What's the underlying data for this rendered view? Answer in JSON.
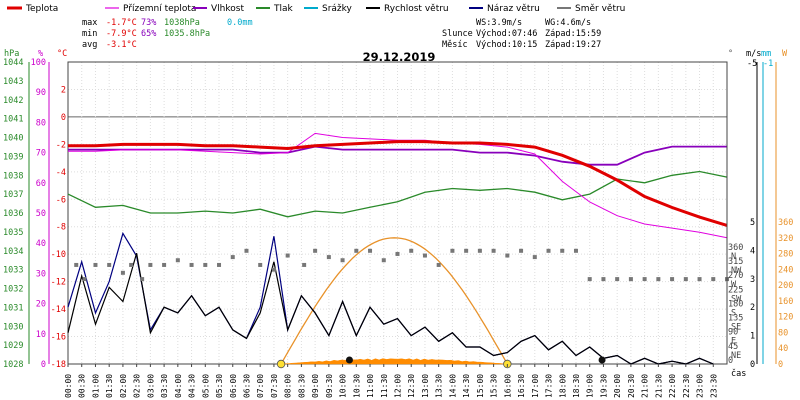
{
  "chart_data": {
    "type": "line",
    "title": "29.12.2019",
    "xlabel": "čas",
    "legend": [
      {
        "name": "Teplota",
        "color": "#e00000"
      },
      {
        "name": "Přízemní teplota",
        "color": "#e000e0"
      },
      {
        "name": "Vlhkost",
        "color": "#8800bb"
      },
      {
        "name": "Tlak",
        "color": "#2a8a2a"
      },
      {
        "name": "Srážky",
        "color": "#00aacc"
      },
      {
        "name": "Rychlost větru",
        "color": "#000000"
      },
      {
        "name": "Náraz větru",
        "color": "#000080"
      },
      {
        "name": "Směr větru",
        "color": "#777777"
      }
    ],
    "stats": {
      "max_label": "max",
      "max_temp": "-1.7°C",
      "max_hum": "73%",
      "max_press": "1038hPa",
      "precip": "0.0mm",
      "min_label": "min",
      "min_temp": "-7.9°C",
      "min_hum": "65%",
      "min_press": "1035.8hPa",
      "avg_label": "avg",
      "avg_temp": "-3.1°C"
    },
    "wind_info": {
      "ws": "WS:3.9m/s",
      "wg": "WG:4.6m/s"
    },
    "sun_info": {
      "label": "Slunce",
      "rise": "Východ:07:46",
      "set": "Západ:15:59"
    },
    "moon_info": {
      "label": "Měsíc",
      "rise": "Východ:10:15",
      "set": "Západ:19:27"
    },
    "axes": {
      "pressure": {
        "unit": "hPa",
        "ticks": [
          "1044",
          "1043",
          "1042",
          "1041",
          "1040",
          "1039",
          "1038",
          "1037",
          "1036",
          "1035",
          "1034",
          "1033",
          "1032",
          "1031",
          "1030",
          "1029",
          "1028"
        ]
      },
      "humidity": {
        "unit": "%",
        "ticks": [
          "100",
          "90",
          "80",
          "70",
          "60",
          "50",
          "40",
          "30",
          "20",
          "10",
          "0"
        ]
      },
      "temperature": {
        "unit": "°C",
        "range": [
          -18,
          4
        ],
        "ticks": [
          "2",
          "0",
          "-2",
          "-4",
          "-6",
          "-8",
          "-10",
          "-12",
          "-14",
          "-16",
          "-18"
        ]
      },
      "direction": {
        "unit": "°",
        "ticks": [
          {
            "v": "360",
            "d": "N"
          },
          {
            "v": "315",
            "d": "NW"
          },
          {
            "v": "270",
            "d": "W"
          },
          {
            "v": "225",
            "d": "SW"
          },
          {
            "v": "180",
            "d": "S"
          },
          {
            "v": "135",
            "d": "SE"
          },
          {
            "v": "90",
            "d": "E"
          },
          {
            "v": "45",
            "d": "NE"
          },
          {
            "v": "0",
            "d": ""
          }
        ]
      },
      "wind_speed": {
        "unit": "m/s",
        "top": "-5",
        "ticks": [
          "5",
          "4",
          "3",
          "2",
          "1",
          "0"
        ]
      },
      "rain": {
        "unit": "mm",
        "top": "-1"
      },
      "solar": {
        "unit": "W",
        "ticks": [
          "360",
          "320",
          "280",
          "240",
          "200",
          "160",
          "120",
          "80",
          "40",
          "0"
        ]
      }
    },
    "x_ticks": [
      "00:00",
      "00:30",
      "01:00",
      "01:30",
      "02:00",
      "02:30",
      "03:00",
      "03:30",
      "04:00",
      "04:30",
      "05:00",
      "05:30",
      "06:00",
      "06:30",
      "07:00",
      "07:30",
      "08:00",
      "08:30",
      "09:00",
      "09:30",
      "10:00",
      "10:30",
      "11:00",
      "11:30",
      "12:00",
      "12:30",
      "13:00",
      "13:30",
      "14:00",
      "14:30",
      "15:00",
      "15:30",
      "16:00",
      "16:30",
      "17:00",
      "17:30",
      "18:00",
      "18:30",
      "19:00",
      "19:30",
      "20:00",
      "20:30",
      "21:00",
      "21:30",
      "22:00",
      "22:30",
      "23:00",
      "23:30"
    ],
    "series": {
      "temperature": [
        [
          0,
          -2.1
        ],
        [
          1,
          -2.1
        ],
        [
          2,
          -2.0
        ],
        [
          3,
          -2.0
        ],
        [
          4,
          -2.0
        ],
        [
          5,
          -2.1
        ],
        [
          6,
          -2.1
        ],
        [
          7,
          -2.2
        ],
        [
          8,
          -2.3
        ],
        [
          9,
          -2.1
        ],
        [
          10,
          -2.0
        ],
        [
          11,
          -1.9
        ],
        [
          12,
          -1.8
        ],
        [
          13,
          -1.8
        ],
        [
          14,
          -1.9
        ],
        [
          15,
          -1.9
        ],
        [
          16,
          -2.0
        ],
        [
          17,
          -2.2
        ],
        [
          18,
          -2.8
        ],
        [
          19,
          -3.6
        ],
        [
          20,
          -4.6
        ],
        [
          21,
          -5.8
        ],
        [
          22,
          -6.6
        ],
        [
          23,
          -7.3
        ],
        [
          24,
          -7.9
        ]
      ],
      "ground_temperature": [
        [
          0,
          -2.5
        ],
        [
          1,
          -2.5
        ],
        [
          2,
          -2.4
        ],
        [
          3,
          -2.4
        ],
        [
          4,
          -2.4
        ],
        [
          5,
          -2.5
        ],
        [
          6,
          -2.6
        ],
        [
          7,
          -2.7
        ],
        [
          8,
          -2.6
        ],
        [
          9,
          -1.2
        ],
        [
          10,
          -1.5
        ],
        [
          11,
          -1.6
        ],
        [
          12,
          -1.7
        ],
        [
          13,
          -1.7
        ],
        [
          14,
          -1.9
        ],
        [
          15,
          -2.0
        ],
        [
          16,
          -2.2
        ],
        [
          17,
          -2.7
        ],
        [
          18,
          -4.7
        ],
        [
          19,
          -6.2
        ],
        [
          20,
          -7.2
        ],
        [
          21,
          -7.8
        ],
        [
          22,
          -8.1
        ],
        [
          23,
          -8.4
        ],
        [
          24,
          -8.8
        ]
      ],
      "humidity": [
        [
          0,
          71
        ],
        [
          1,
          71
        ],
        [
          2,
          71
        ],
        [
          3,
          71
        ],
        [
          4,
          71
        ],
        [
          5,
          71
        ],
        [
          6,
          71
        ],
        [
          7,
          70
        ],
        [
          8,
          70
        ],
        [
          9,
          72
        ],
        [
          10,
          71
        ],
        [
          11,
          71
        ],
        [
          12,
          71
        ],
        [
          13,
          71
        ],
        [
          14,
          71
        ],
        [
          15,
          70
        ],
        [
          16,
          70
        ],
        [
          17,
          69
        ],
        [
          18,
          67
        ],
        [
          19,
          66
        ],
        [
          20,
          66
        ],
        [
          21,
          70
        ],
        [
          22,
          72
        ],
        [
          23,
          72
        ],
        [
          24,
          72
        ]
      ],
      "pressure": [
        [
          0,
          1037.0
        ],
        [
          1,
          1036.3
        ],
        [
          2,
          1036.4
        ],
        [
          3,
          1036.0
        ],
        [
          4,
          1036.0
        ],
        [
          5,
          1036.1
        ],
        [
          6,
          1036.0
        ],
        [
          7,
          1036.2
        ],
        [
          8,
          1035.8
        ],
        [
          9,
          1036.1
        ],
        [
          10,
          1036.0
        ],
        [
          11,
          1036.3
        ],
        [
          12,
          1036.6
        ],
        [
          13,
          1037.1
        ],
        [
          14,
          1037.3
        ],
        [
          15,
          1037.2
        ],
        [
          16,
          1037.3
        ],
        [
          17,
          1037.1
        ],
        [
          18,
          1036.7
        ],
        [
          19,
          1037.0
        ],
        [
          20,
          1037.8
        ],
        [
          21,
          1037.6
        ],
        [
          22,
          1038.0
        ],
        [
          23,
          1038.2
        ],
        [
          24,
          1037.9
        ]
      ],
      "wind_speed": [
        [
          0,
          1.1
        ],
        [
          0.5,
          3.1
        ],
        [
          1,
          1.4
        ],
        [
          1.5,
          2.7
        ],
        [
          2,
          2.2
        ],
        [
          2.5,
          3.9
        ],
        [
          3,
          1.1
        ],
        [
          3.5,
          2.0
        ],
        [
          4,
          1.8
        ],
        [
          4.5,
          2.4
        ],
        [
          5,
          1.7
        ],
        [
          5.5,
          2.0
        ],
        [
          6,
          1.2
        ],
        [
          6.5,
          0.9
        ],
        [
          7,
          1.8
        ],
        [
          7.5,
          3.6
        ],
        [
          8,
          1.2
        ],
        [
          8.5,
          2.4
        ],
        [
          9,
          1.8
        ],
        [
          9.5,
          1.0
        ],
        [
          10,
          2.2
        ],
        [
          10.5,
          1.0
        ],
        [
          11,
          2.0
        ],
        [
          11.5,
          1.4
        ],
        [
          12,
          1.6
        ],
        [
          12.5,
          1.0
        ],
        [
          13,
          1.3
        ],
        [
          13.5,
          0.8
        ],
        [
          14,
          1.1
        ],
        [
          14.5,
          0.6
        ],
        [
          15,
          0.6
        ],
        [
          15.5,
          0.3
        ],
        [
          16,
          0.4
        ],
        [
          16.5,
          0.8
        ],
        [
          17,
          1.0
        ],
        [
          17.5,
          0.5
        ],
        [
          18,
          0.8
        ],
        [
          18.5,
          0.3
        ],
        [
          19,
          0.6
        ],
        [
          19.5,
          0.2
        ],
        [
          20,
          0.3
        ],
        [
          20.5,
          0.0
        ],
        [
          21,
          0.2
        ],
        [
          21.5,
          0.0
        ],
        [
          22,
          0.1
        ],
        [
          22.5,
          0.0
        ],
        [
          23,
          0.2
        ],
        [
          23.5,
          0.0
        ]
      ],
      "wind_gust": [
        [
          0,
          2.0
        ],
        [
          0.5,
          3.6
        ],
        [
          1,
          1.8
        ],
        [
          1.5,
          2.9
        ],
        [
          2,
          4.6
        ],
        [
          2.5,
          3.8
        ],
        [
          3,
          1.2
        ],
        [
          3.5,
          2.0
        ],
        [
          4,
          1.8
        ],
        [
          4.5,
          2.4
        ],
        [
          5,
          1.7
        ],
        [
          5.5,
          2.0
        ],
        [
          6,
          1.2
        ],
        [
          6.5,
          0.9
        ],
        [
          7,
          2.0
        ],
        [
          7.5,
          4.5
        ],
        [
          8,
          1.2
        ],
        [
          8.5,
          2.4
        ],
        [
          9,
          1.8
        ],
        [
          9.5,
          1.0
        ],
        [
          10,
          2.2
        ],
        [
          10.5,
          1.0
        ],
        [
          11,
          2.0
        ],
        [
          11.5,
          1.4
        ],
        [
          12,
          1.6
        ],
        [
          12.5,
          1.0
        ],
        [
          13,
          1.3
        ],
        [
          13.5,
          0.8
        ],
        [
          14,
          1.1
        ],
        [
          14.5,
          0.6
        ],
        [
          15,
          0.6
        ],
        [
          15.5,
          0.3
        ],
        [
          16,
          0.4
        ],
        [
          16.5,
          0.8
        ],
        [
          17,
          1.0
        ],
        [
          17.5,
          0.5
        ],
        [
          18,
          0.8
        ],
        [
          18.5,
          0.3
        ],
        [
          19,
          0.6
        ],
        [
          19.5,
          0.2
        ],
        [
          20,
          0.3
        ],
        [
          20.5,
          0.0
        ],
        [
          21,
          0.2
        ],
        [
          21.5,
          0.0
        ],
        [
          22,
          0.1
        ],
        [
          22.5,
          0.0
        ],
        [
          23,
          0.2
        ],
        [
          23.5,
          0.0
        ]
      ],
      "wind_direction": [
        [
          0.3,
          315
        ],
        [
          0.6,
          270
        ],
        [
          1.0,
          315
        ],
        [
          1.5,
          315
        ],
        [
          2.0,
          290
        ],
        [
          2.3,
          315
        ],
        [
          2.7,
          270
        ],
        [
          3.0,
          315
        ],
        [
          3.5,
          315
        ],
        [
          4.0,
          330
        ],
        [
          4.5,
          315
        ],
        [
          5.0,
          315
        ],
        [
          5.5,
          315
        ],
        [
          6.0,
          340
        ],
        [
          6.5,
          360
        ],
        [
          7.0,
          315
        ],
        [
          7.5,
          300
        ],
        [
          8.0,
          345
        ],
        [
          8.6,
          315
        ],
        [
          9.0,
          360
        ],
        [
          9.5,
          340
        ],
        [
          10.0,
          330
        ],
        [
          10.5,
          360
        ],
        [
          11.0,
          360
        ],
        [
          11.5,
          330
        ],
        [
          12.0,
          350
        ],
        [
          12.5,
          360
        ],
        [
          13.0,
          345
        ],
        [
          13.5,
          315
        ],
        [
          14.0,
          360
        ],
        [
          14.5,
          360
        ],
        [
          15.0,
          360
        ],
        [
          15.5,
          360
        ],
        [
          16.0,
          345
        ],
        [
          16.5,
          360
        ],
        [
          17.0,
          340
        ],
        [
          17.5,
          360
        ],
        [
          18.0,
          360
        ],
        [
          18.5,
          360
        ],
        [
          19.0,
          270
        ],
        [
          19.5,
          270
        ],
        [
          20.0,
          270
        ],
        [
          20.5,
          270
        ],
        [
          21.0,
          270
        ],
        [
          21.5,
          270
        ],
        [
          22.0,
          270
        ],
        [
          22.5,
          270
        ],
        [
          23.0,
          270
        ],
        [
          23.5,
          270
        ],
        [
          24.0,
          270
        ]
      ],
      "solar_radiation": {
        "peak_w": 320,
        "start_h": 7.76,
        "end_h": 16.0
      },
      "sun_marks": [
        7.76,
        16.0
      ],
      "moon_marks": [
        10.25,
        19.45
      ]
    }
  }
}
